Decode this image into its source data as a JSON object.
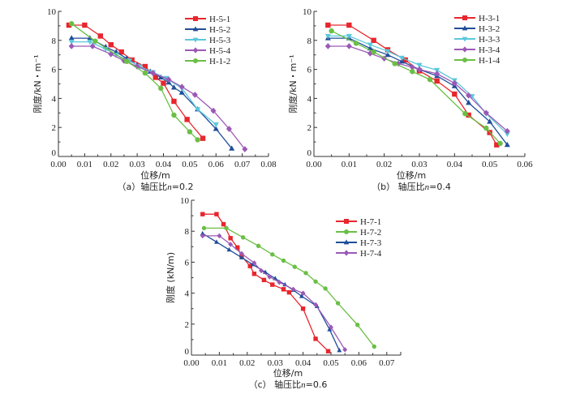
{
  "chart_data": [
    {
      "id": "a",
      "type": "line",
      "title": "",
      "caption_prefix": "（a）轴压比",
      "caption_var": "n",
      "caption_value": "=0.2",
      "xlabel": "位移/m",
      "ylabel": "刚度/kN・m⁻¹",
      "xlim": [
        0,
        0.08
      ],
      "ylim": [
        0,
        10
      ],
      "xticks": [
        "0.00",
        "0.01",
        "0.02",
        "0.03",
        "0.04",
        "0.05",
        "0.06",
        "0.07",
        "0.08"
      ],
      "yticks": [
        "0",
        "2",
        "4",
        "6",
        "8",
        "10"
      ],
      "legend_position": "top-right",
      "grid": false,
      "series": [
        {
          "name": "H-5-1",
          "color": "#e8262d",
          "marker": "square",
          "x": [
            0.004,
            0.01,
            0.016,
            0.02,
            0.024,
            0.028,
            0.033,
            0.037,
            0.04,
            0.044,
            0.049,
            0.055
          ],
          "y": [
            9.05,
            9.05,
            8.3,
            7.7,
            7.2,
            6.65,
            6.2,
            5.45,
            5.05,
            3.8,
            2.55,
            1.25
          ]
        },
        {
          "name": "H-5-2",
          "color": "#1f4e99",
          "marker": "triangle-up",
          "x": [
            0.005,
            0.012,
            0.018,
            0.022,
            0.026,
            0.03,
            0.035,
            0.039,
            0.042,
            0.044,
            0.047,
            0.053,
            0.06,
            0.066
          ],
          "y": [
            8.15,
            8.15,
            7.55,
            7.2,
            6.75,
            6.3,
            5.85,
            5.45,
            5.1,
            4.75,
            4.4,
            3.25,
            1.9,
            0.55
          ]
        },
        {
          "name": "H-5-3",
          "color": "#5bc8dc",
          "marker": "triangle-down",
          "x": [
            0.005,
            0.012,
            0.018,
            0.022,
            0.027,
            0.031,
            0.036,
            0.041,
            0.047,
            0.053,
            0.06
          ],
          "y": [
            7.9,
            7.9,
            7.4,
            7.0,
            6.6,
            6.2,
            5.8,
            5.4,
            4.7,
            3.25,
            2.2
          ]
        },
        {
          "name": "H-5-4",
          "color": "#9b59b6",
          "marker": "diamond",
          "x": [
            0.005,
            0.013,
            0.02,
            0.025,
            0.03,
            0.036,
            0.042,
            0.047,
            0.052,
            0.059,
            0.065,
            0.071
          ],
          "y": [
            7.6,
            7.6,
            7.05,
            6.6,
            6.2,
            5.75,
            5.3,
            4.8,
            4.25,
            3.15,
            1.9,
            0.5
          ]
        },
        {
          "name": "H-1-2",
          "color": "#6abf45",
          "marker": "circle",
          "x": [
            0.005,
            0.014,
            0.026,
            0.033,
            0.039,
            0.044,
            0.05,
            0.053
          ],
          "y": [
            9.15,
            7.95,
            6.55,
            5.75,
            4.7,
            2.85,
            1.7,
            1.15
          ]
        }
      ]
    },
    {
      "id": "b",
      "type": "line",
      "title": "",
      "caption_prefix": "（b） 轴压比",
      "caption_var": "n",
      "caption_value": "=0.4",
      "xlabel": "位移/m",
      "ylabel": "刚度/kN・m⁻¹",
      "xlim": [
        0,
        0.06
      ],
      "ylim": [
        0,
        10
      ],
      "xticks": [
        "0.00",
        "0.01",
        "0.02",
        "0.03",
        "0.04",
        "0.05",
        "0.06"
      ],
      "yticks": [
        "0",
        "2",
        "4",
        "6",
        "8",
        "10"
      ],
      "legend_position": "top-right",
      "grid": false,
      "series": [
        {
          "name": "H-3-1",
          "color": "#e8262d",
          "marker": "square",
          "x": [
            0.004,
            0.01,
            0.017,
            0.021,
            0.026,
            0.03,
            0.035,
            0.04,
            0.044,
            0.05,
            0.052
          ],
          "y": [
            9.05,
            9.05,
            8.0,
            7.35,
            6.65,
            5.9,
            5.2,
            4.3,
            2.85,
            1.65,
            0.8
          ]
        },
        {
          "name": "H-3-2",
          "color": "#1f4e99",
          "marker": "triangle-up",
          "x": [
            0.004,
            0.01,
            0.016,
            0.021,
            0.025,
            0.03,
            0.035,
            0.04,
            0.044,
            0.05,
            0.055
          ],
          "y": [
            8.15,
            8.15,
            7.45,
            7.0,
            6.55,
            6.0,
            5.55,
            4.85,
            3.7,
            2.4,
            0.8
          ]
        },
        {
          "name": "H-3-3",
          "color": "#5bc8dc",
          "marker": "triangle-down",
          "x": [
            0.004,
            0.01,
            0.016,
            0.021,
            0.025,
            0.03,
            0.035,
            0.04,
            0.045,
            0.049,
            0.055
          ],
          "y": [
            8.3,
            8.3,
            7.7,
            7.25,
            6.8,
            6.3,
            5.95,
            5.25,
            4.15,
            2.95,
            1.55
          ]
        },
        {
          "name": "H-3-4",
          "color": "#9b59b6",
          "marker": "diamond",
          "x": [
            0.004,
            0.01,
            0.016,
            0.02,
            0.024,
            0.028,
            0.03,
            0.035,
            0.04,
            0.044,
            0.049,
            0.055
          ],
          "y": [
            7.6,
            7.6,
            7.1,
            6.75,
            6.4,
            6.15,
            6.0,
            5.7,
            5.05,
            4.2,
            3.0,
            1.75
          ]
        },
        {
          "name": "H-1-4",
          "color": "#6abf45",
          "marker": "circle",
          "x": [
            0.005,
            0.012,
            0.017,
            0.023,
            0.028,
            0.033,
            0.043,
            0.049,
            0.053
          ],
          "y": [
            8.65,
            7.8,
            7.2,
            6.4,
            5.85,
            5.3,
            2.95,
            1.95,
            0.9
          ]
        }
      ]
    },
    {
      "id": "c",
      "type": "line",
      "title": "",
      "caption_prefix": "（c） 轴压比",
      "caption_var": "n",
      "caption_value": "=0.6",
      "xlabel": "位移/m",
      "ylabel": "刚度 (kN/m)",
      "xlim": [
        0,
        0.075
      ],
      "ylim": [
        0,
        10
      ],
      "xticks": [
        "0.00",
        "0.01",
        "0.02",
        "0.03",
        "0.04",
        "0.05",
        "0.06",
        "0.07"
      ],
      "yticks": [
        "0",
        "2",
        "4",
        "6",
        "8",
        "10"
      ],
      "legend_position": "top-right",
      "grid": false,
      "series": [
        {
          "name": "H-7-1",
          "color": "#e8262d",
          "marker": "square",
          "x": [
            0.004,
            0.009,
            0.0115,
            0.014,
            0.0165,
            0.018,
            0.021,
            0.0225,
            0.026,
            0.029,
            0.033,
            0.035,
            0.04,
            0.0445,
            0.049
          ],
          "y": [
            9.1,
            9.1,
            8.45,
            7.55,
            6.95,
            6.4,
            5.75,
            5.25,
            4.85,
            4.55,
            4.25,
            4.05,
            3.0,
            1.05,
            0.25
          ]
        },
        {
          "name": "H-7-2",
          "color": "#6abf45",
          "marker": "circle",
          "x": [
            0.0045,
            0.0125,
            0.0185,
            0.024,
            0.029,
            0.033,
            0.037,
            0.041,
            0.0445,
            0.048,
            0.0525,
            0.0595,
            0.0655
          ],
          "y": [
            8.2,
            8.2,
            7.6,
            7.05,
            6.5,
            6.1,
            5.7,
            5.3,
            4.75,
            4.3,
            3.35,
            1.95,
            0.55
          ]
        },
        {
          "name": "H-7-3",
          "color": "#1f4e99",
          "marker": "triangle-up",
          "x": [
            0.004,
            0.009,
            0.0135,
            0.018,
            0.022,
            0.0265,
            0.03,
            0.0335,
            0.0365,
            0.0395,
            0.045,
            0.0495,
            0.053
          ],
          "y": [
            7.85,
            7.3,
            6.8,
            6.3,
            5.85,
            5.35,
            4.95,
            4.55,
            4.2,
            3.8,
            3.15,
            1.65,
            0.3
          ]
        },
        {
          "name": "H-7-4",
          "color": "#9b59b6",
          "marker": "diamond",
          "x": [
            0.004,
            0.01,
            0.014,
            0.018,
            0.0225,
            0.025,
            0.028,
            0.0315,
            0.0365,
            0.04,
            0.0445,
            0.05,
            0.055
          ],
          "y": [
            7.7,
            7.7,
            7.15,
            6.55,
            5.95,
            5.45,
            5.05,
            4.7,
            4.25,
            4.0,
            3.25,
            1.8,
            0.35
          ]
        }
      ]
    }
  ]
}
